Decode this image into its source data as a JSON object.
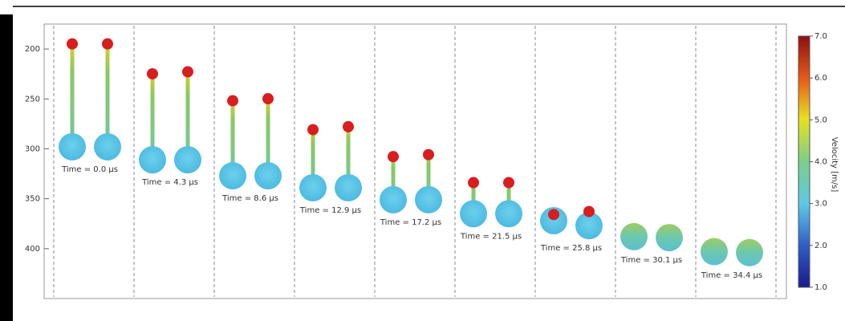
{
  "chart_data": {
    "type": "droplet-sequence",
    "ylim": [
      175,
      450
    ],
    "yticks": [
      200,
      250,
      300,
      350,
      400
    ],
    "panels": [
      {
        "label": "Time = 0.0 µs",
        "heads": [
          190,
          190
        ],
        "bulbs": [
          298,
          298
        ]
      },
      {
        "label": "Time = 4.3 µs",
        "heads": [
          220,
          218
        ],
        "bulbs": [
          311,
          311
        ]
      },
      {
        "label": "Time = 8.6 µs",
        "heads": [
          247,
          245
        ],
        "bulbs": [
          327,
          327
        ]
      },
      {
        "label": "Time = 12.9 µs",
        "heads": [
          276,
          273
        ],
        "bulbs": [
          339,
          339
        ]
      },
      {
        "label": "Time = 17.2 µs",
        "heads": [
          303,
          301
        ],
        "bulbs": [
          351,
          351
        ]
      },
      {
        "label": "Time = 21.5 µs",
        "heads": [
          329,
          329
        ],
        "bulbs": [
          365,
          365
        ]
      },
      {
        "label": "Time = 25.8 µs",
        "heads": [
          361,
          358
        ],
        "bulbs": [
          372,
          377
        ]
      },
      {
        "label": "Time = 30.1 µs",
        "heads": [
          null,
          null
        ],
        "bulbs": [
          388,
          389
        ]
      },
      {
        "label": "Time = 34.4 µs",
        "heads": [
          null,
          null
        ],
        "bulbs": [
          403,
          404
        ]
      }
    ],
    "colorbar": {
      "label": "Velocity [m/s]",
      "lim": [
        1,
        7
      ],
      "ticks": [
        {
          "value": 1,
          "label": "1.0"
        },
        {
          "value": 2,
          "label": "2.0"
        },
        {
          "value": 3,
          "label": "3.0"
        },
        {
          "value": 4,
          "label": "4.0"
        },
        {
          "value": 5,
          "label": "5.0"
        },
        {
          "value": 6,
          "label": "6.0"
        },
        {
          "value": 7,
          "label": "7.0"
        }
      ]
    }
  }
}
